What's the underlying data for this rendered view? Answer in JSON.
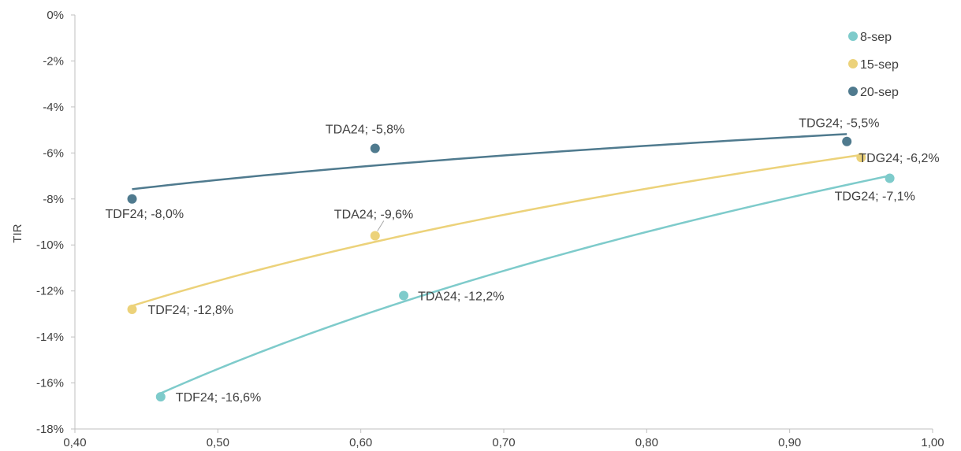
{
  "chart_data": {
    "type": "scatter",
    "xlabel": "",
    "ylabel": "TIR",
    "xlim": [
      0.4,
      1.0
    ],
    "ylim": [
      -18,
      0
    ],
    "x_ticks": [
      "0,40",
      "0,50",
      "0,60",
      "0,70",
      "0,80",
      "0,90",
      "1,00"
    ],
    "y_ticks": [
      "0%",
      "-2%",
      "-4%",
      "-6%",
      "-8%",
      "-10%",
      "-12%",
      "-14%",
      "-16%",
      "-18%"
    ],
    "grid": false,
    "legend_position": "top-right",
    "trendline": "logarithmic",
    "series": [
      {
        "name": "8-sep",
        "color": "#7ecbcb",
        "points": [
          {
            "x": 0.46,
            "y": -16.6,
            "label": "TDF24; -16,6%"
          },
          {
            "x": 0.63,
            "y": -12.2,
            "label": "TDA24; -12,2%"
          },
          {
            "x": 0.97,
            "y": -7.1,
            "label": "TDG24; -7,1%"
          }
        ]
      },
      {
        "name": "15-sep",
        "color": "#ecd27a",
        "points": [
          {
            "x": 0.44,
            "y": -12.8,
            "label": "TDF24; -12,8%"
          },
          {
            "x": 0.61,
            "y": -9.6,
            "label": "TDA24; -9,6%"
          },
          {
            "x": 0.95,
            "y": -6.2,
            "label": "TDG24; -6,2%"
          }
        ]
      },
      {
        "name": "20-sep",
        "color": "#4f7a8e",
        "points": [
          {
            "x": 0.44,
            "y": -8.0,
            "label": "TDF24; -8,0%"
          },
          {
            "x": 0.61,
            "y": -5.8,
            "label": "TDA24; -5,8%"
          },
          {
            "x": 0.94,
            "y": -5.5,
            "label": "TDG24; -5,5%"
          }
        ]
      }
    ]
  }
}
